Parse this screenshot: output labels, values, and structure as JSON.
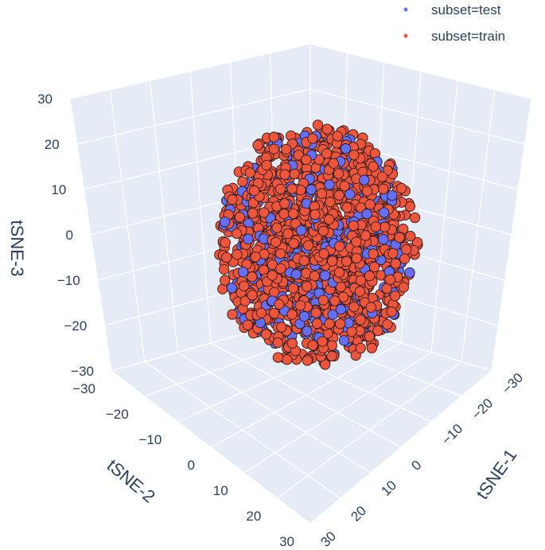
{
  "chart_data": {
    "type": "scatter3d",
    "axes": {
      "x": {
        "label": "tSNE-1",
        "range": [
          -30,
          30
        ],
        "ticks": [
          -30,
          -20,
          -10,
          0,
          10,
          20,
          30
        ]
      },
      "y": {
        "label": "tSNE-2",
        "range": [
          -30,
          30
        ],
        "ticks": [
          -30,
          -20,
          -10,
          0,
          10,
          20,
          30
        ]
      },
      "z": {
        "label": "tSNE-3",
        "range": [
          -30,
          30
        ],
        "ticks": [
          -30,
          -20,
          -10,
          0,
          10,
          20,
          30
        ]
      }
    },
    "grid": true,
    "legend": {
      "position": "top-right"
    },
    "series": [
      {
        "name": "subset=test",
        "color": "#636efa",
        "count": 320,
        "radius_max": 27
      },
      {
        "name": "subset=train",
        "color": "#ef553b",
        "count": 1300,
        "radius_max": 28
      }
    ]
  }
}
